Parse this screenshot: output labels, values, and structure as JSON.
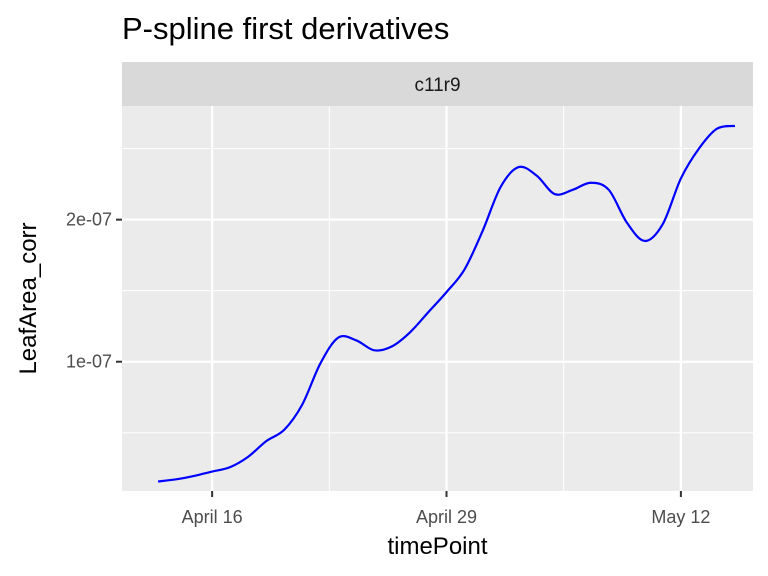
{
  "chart_data": {
    "type": "line",
    "title": "P-spline first derivatives",
    "facet": "c11r9",
    "xlabel": "timePoint",
    "ylabel": "LeafArea_corr",
    "x_type": "date",
    "x_ticks": [
      "2019-04-16",
      "2019-04-29",
      "2019-05-12"
    ],
    "x_tick_labels": [
      "April 16",
      "April 29",
      "May 12"
    ],
    "y_ticks": [
      1e-07,
      2e-07
    ],
    "y_tick_labels": [
      "1e-07",
      "2e-07"
    ],
    "xlim": [
      "2019-04-11",
      "2019-05-16"
    ],
    "ylim": [
      9e-09,
      2.8e-07
    ],
    "grid": true,
    "series": [
      {
        "color": "#0000ff",
        "x": [
          "2019-04-13",
          "2019-04-14",
          "2019-04-15",
          "2019-04-16",
          "2019-04-17",
          "2019-04-18",
          "2019-04-19",
          "2019-04-20",
          "2019-04-21",
          "2019-04-22",
          "2019-04-23",
          "2019-04-24",
          "2019-04-25",
          "2019-04-26",
          "2019-04-27",
          "2019-04-28",
          "2019-04-29",
          "2019-04-30",
          "2019-05-01",
          "2019-05-02",
          "2019-05-03",
          "2019-05-04",
          "2019-05-05",
          "2019-05-06",
          "2019-05-07",
          "2019-05-08",
          "2019-05-09",
          "2019-05-10",
          "2019-05-11",
          "2019-05-12",
          "2019-05-13",
          "2019-05-14",
          "2019-05-15"
        ],
        "y": [
          1.57e-08,
          1.72e-08,
          1.96e-08,
          2.27e-08,
          2.58e-08,
          3.31e-08,
          4.41e-08,
          5.21e-08,
          6.99e-08,
          9.87e-08,
          1.17e-07,
          1.15e-07,
          1.08e-07,
          1.11e-07,
          1.21e-07,
          1.35e-07,
          1.49e-07,
          1.65e-07,
          1.92e-07,
          2.23e-07,
          2.37e-07,
          2.31e-07,
          2.18e-07,
          2.21e-07,
          2.26e-07,
          2.21e-07,
          1.98e-07,
          1.85e-07,
          1.97e-07,
          2.29e-07,
          2.5e-07,
          2.64e-07,
          2.66e-07
        ]
      }
    ]
  }
}
